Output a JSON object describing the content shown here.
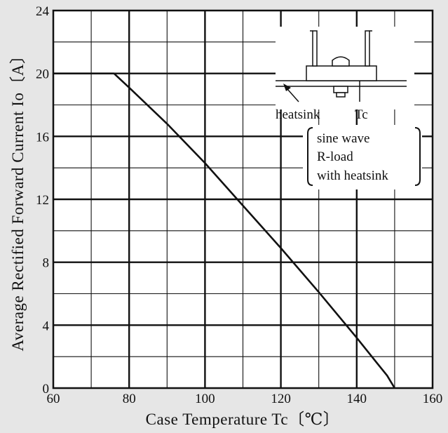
{
  "chart_data": {
    "type": "line",
    "xlabel": "Case Temperature Tc〔℃〕",
    "ylabel": "Average Rectified Forward Current Io〔A〕",
    "xlim": [
      60,
      160
    ],
    "ylim": [
      0,
      24
    ],
    "x_ticks": [
      "60",
      "80",
      "100",
      "120",
      "140",
      "160"
    ],
    "y_ticks": [
      "0",
      "4",
      "8",
      "12",
      "16",
      "20",
      "24"
    ],
    "grid": true,
    "series": [
      {
        "x": [
          60,
          76,
          80,
          90,
          100,
          110,
          120,
          130,
          140,
          145,
          148,
          150
        ],
        "y": [
          20,
          20,
          19.1,
          16.8,
          14.3,
          11.6,
          8.9,
          6.1,
          3.2,
          1.7,
          0.8,
          0
        ]
      }
    ],
    "annotations": {
      "heatsink_label": "heatsink",
      "tc_label": "Tc",
      "conditions": [
        "sine wave",
        "R-load",
        "with heatsink"
      ]
    }
  },
  "colors": {
    "background": "#e6e6e6",
    "plot": "#ffffff",
    "line": "#111111"
  }
}
